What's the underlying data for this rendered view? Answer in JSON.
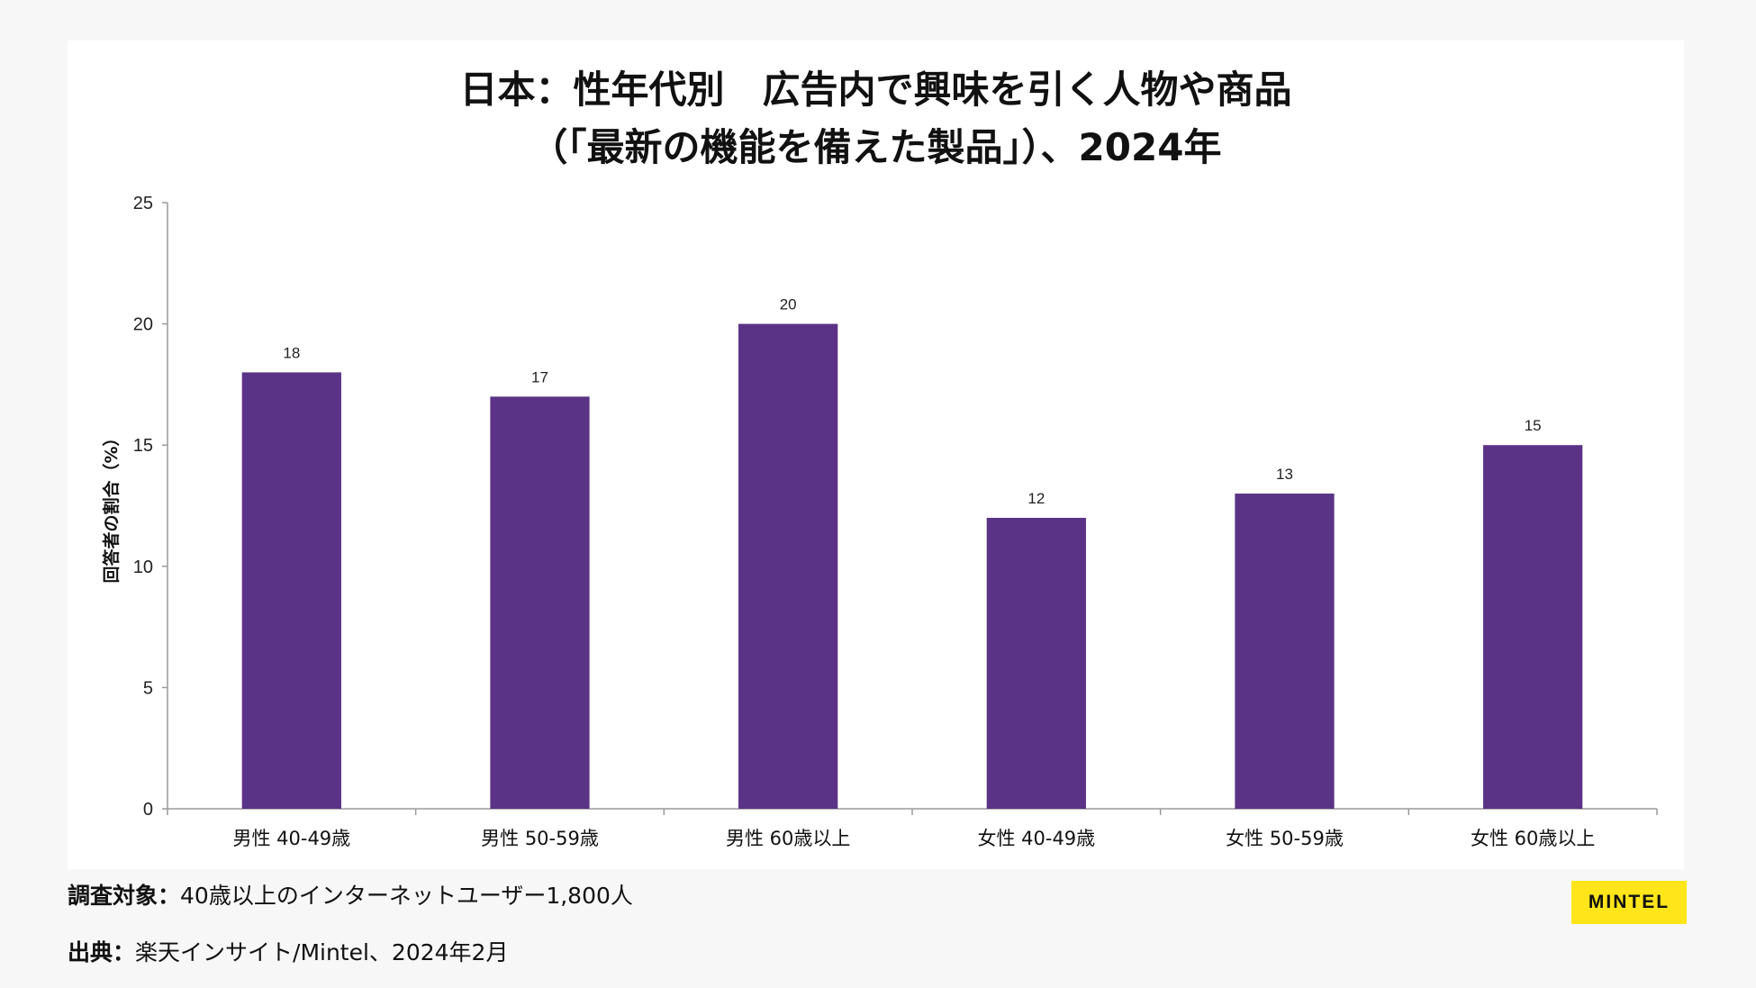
{
  "colors": {
    "bar": "#5b3386",
    "axis": "#9a9a9a",
    "logo_bg": "#ffe51a"
  },
  "chart_data": {
    "type": "bar",
    "title_line1": "日本：性年代別　広告内で興味を引く人物や商品",
    "title_line2": "（「最新の機能を備えた製品」）、2024年",
    "ylabel": "回答者の割合（%）",
    "xlabel": "",
    "ylim": [
      0,
      25
    ],
    "yticks": [
      "0",
      "5",
      "10",
      "15",
      "20",
      "25"
    ],
    "categories": [
      "男性 40-49歳",
      "男性 50-59歳",
      "男性 60歳以上",
      "女性 40-49歳",
      "女性 50-59歳",
      "女性 60歳以上"
    ],
    "values": [
      18,
      17,
      20,
      12,
      13,
      15
    ],
    "grid": false
  },
  "footer": {
    "survey_label": "調査対象：",
    "survey_text": "40歳以上のインターネットユーザー1,800人",
    "source_label": "出典：",
    "source_text": "楽天インサイト/Mintel、2024年2月"
  },
  "logo": {
    "text": "MINTEL"
  }
}
